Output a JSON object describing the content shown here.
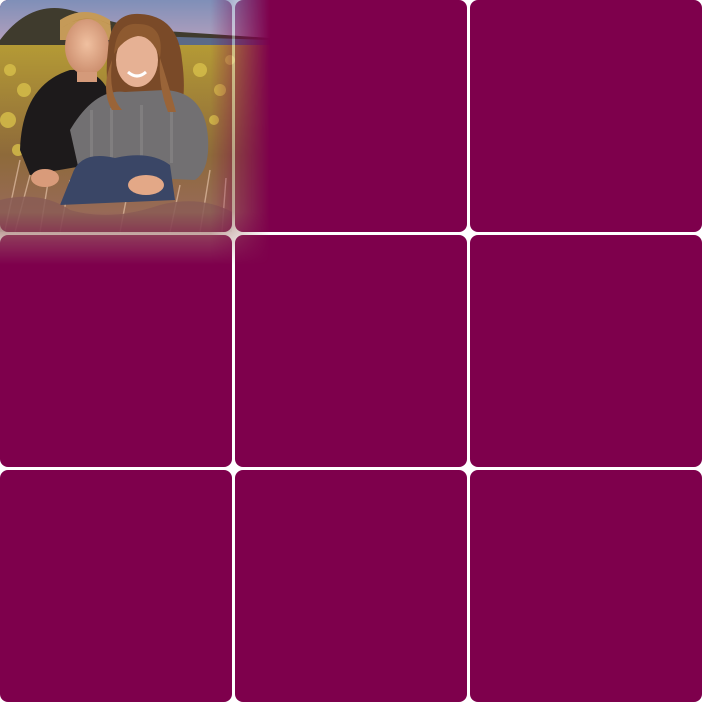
{
  "grid": {
    "rows": 3,
    "columns": 3,
    "tile_color": "#7e004c",
    "gap_color": "#ffffff"
  },
  "photo": {
    "subject": "couple-sitting-in-wild-grass-photo",
    "tile": "top-left"
  },
  "colors": {
    "sky": "#b7a3c0",
    "hill": "#3e3a2c",
    "grass_yellow": "#c9a83a",
    "grass_dry": "#b88a7a",
    "jacket_dark": "#1e1b1c",
    "coat_grey": "#6f6d6e",
    "jeans": "#3c4866",
    "skin": "#e0a888",
    "hair_blond": "#c79a5a",
    "hair_brown": "#8a5a32"
  }
}
